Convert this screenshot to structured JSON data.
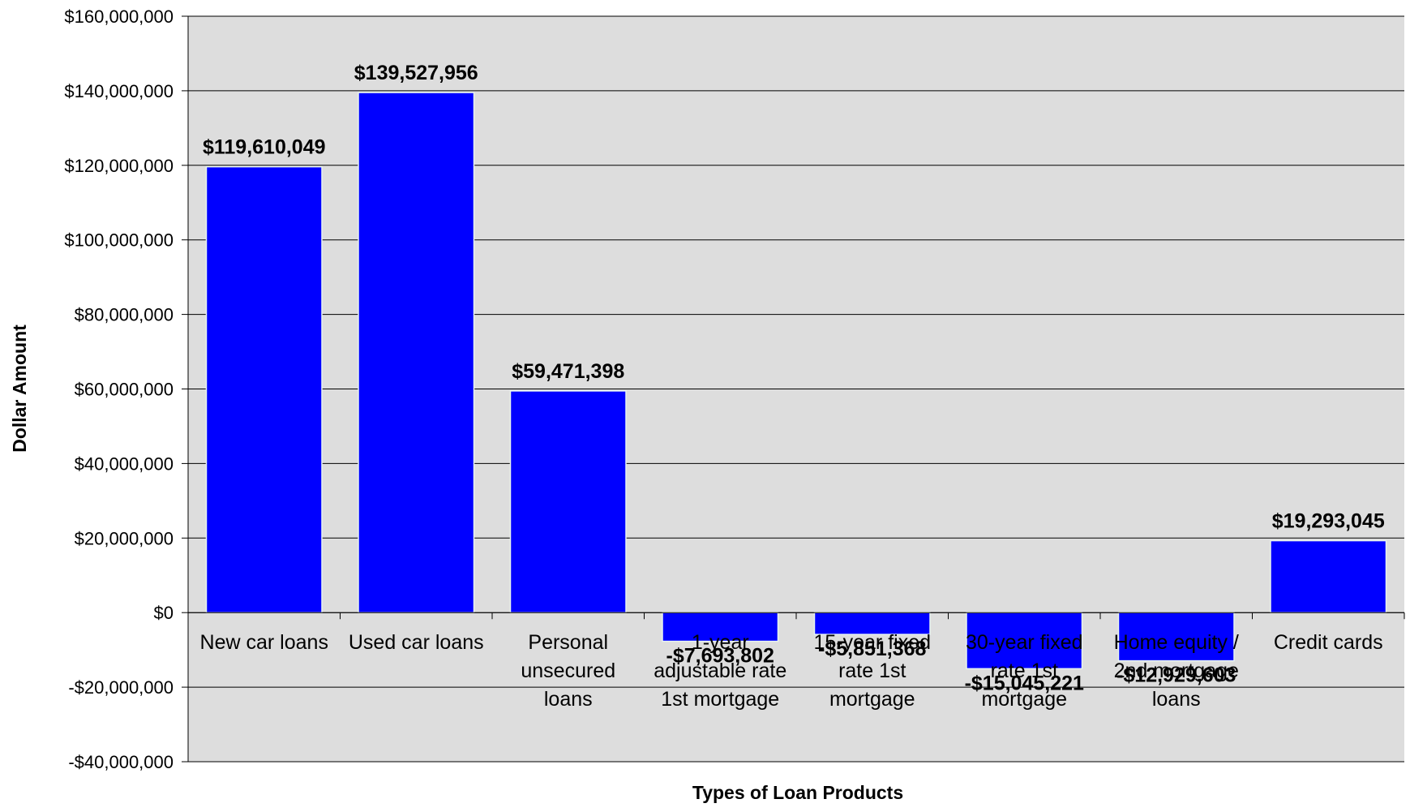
{
  "chart_data": {
    "type": "bar",
    "categories": [
      "New car loans",
      "Used car loans",
      "Personal unsecured loans",
      "1-year adjustable rate 1st mortgage",
      "15-year fixed rate 1st mortgage",
      "30-year fixed rate 1st mortgage",
      "Home equity / 2nd mortgage loans",
      "Credit cards"
    ],
    "values": [
      119610049,
      139527956,
      59471398,
      -7693802,
      -5851368,
      -15045221,
      -12929603,
      19293045
    ],
    "value_labels": [
      "$119,610,049",
      "$139,527,956",
      "$59,471,398",
      "-$7,693,802",
      "-$5,851,368",
      "-$15,045,221",
      "-$12,929,603",
      "$19,293,045"
    ],
    "color": "#0000ff",
    "x_label": "Types of Loan Products",
    "y_label": "Dollar Amount",
    "ylim": [
      -40000000,
      160000000
    ],
    "yticks": [
      {
        "value": -40000000,
        "label": "-$40,000,000"
      },
      {
        "value": -20000000,
        "label": "-$20,000,000"
      },
      {
        "value": 0,
        "label": "$0"
      },
      {
        "value": 20000000,
        "label": "$20,000,000"
      },
      {
        "value": 40000000,
        "label": "$40,000,000"
      },
      {
        "value": 60000000,
        "label": "$60,000,000"
      },
      {
        "value": 80000000,
        "label": "$80,000,000"
      },
      {
        "value": 100000000,
        "label": "$100,000,000"
      },
      {
        "value": 120000000,
        "label": "$120,000,000"
      },
      {
        "value": 140000000,
        "label": "$140,000,000"
      },
      {
        "value": 160000000,
        "label": "$160,000,000"
      }
    ],
    "grid": true
  }
}
